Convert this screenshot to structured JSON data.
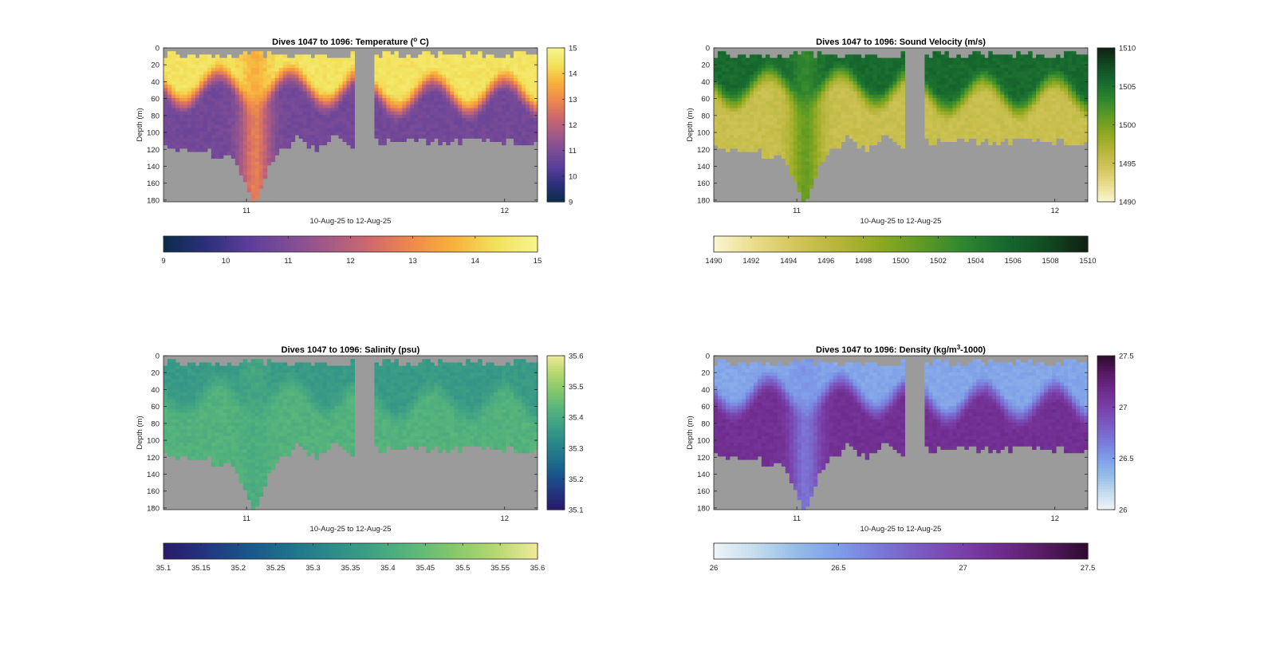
{
  "figure": {
    "background": "#ffffff",
    "nodata_color": "#9b9b9b"
  },
  "chart_data": [
    {
      "type": "heatmap",
      "title_pre": "Dives 1047 to 1096: Temperature (",
      "title_sup": "o",
      "title_post": " C)",
      "xlabel": "10-Aug-25 to 12-Aug-25",
      "ylabel": "Depth (m)",
      "x_ticks": [
        "11",
        "12"
      ],
      "y_ticks": [
        "0",
        "20",
        "40",
        "60",
        "80",
        "100",
        "120",
        "140",
        "160",
        "180"
      ],
      "ylim": [
        0,
        182
      ],
      "colorbar": {
        "ticks": [
          "9",
          "10",
          "11",
          "12",
          "13",
          "14",
          "15"
        ],
        "range": [
          9,
          15
        ]
      },
      "hcolorbar": {
        "ticks": [
          "9",
          "10",
          "11",
          "12",
          "13",
          "14",
          "15"
        ]
      },
      "colormap": [
        "#0c2c4a",
        "#2a2f7a",
        "#5a3d9a",
        "#7d4d96",
        "#a55a86",
        "#cf6a6c",
        "#f08a4b",
        "#f8b23c",
        "#f2e25c",
        "#f8f58e"
      ],
      "surface_value": 14.4,
      "bottom_value": 10.8,
      "upwelling_value": 13.4
    },
    {
      "type": "heatmap",
      "title_pre": "Dives 1047 to 1096: Sound Velocity (m/s)",
      "title_sup": "",
      "title_post": "",
      "xlabel": "10-Aug-25 to 12-Aug-25",
      "ylabel": "Depth (m)",
      "x_ticks": [
        "11",
        "12"
      ],
      "y_ticks": [
        "0",
        "20",
        "40",
        "60",
        "80",
        "100",
        "120",
        "140",
        "160",
        "180"
      ],
      "ylim": [
        0,
        182
      ],
      "colorbar": {
        "ticks": [
          "1490",
          "1495",
          "1500",
          "1505",
          "1510"
        ],
        "range": [
          1490,
          1510
        ]
      },
      "hcolorbar": {
        "ticks": [
          "1490",
          "1492",
          "1494",
          "1496",
          "1498",
          "1500",
          "1502",
          "1504",
          "1506",
          "1508",
          "1510"
        ]
      },
      "colormap": [
        "#fbf6d2",
        "#e8dc8a",
        "#d2c45a",
        "#b5b53a",
        "#8ea820",
        "#5f9a25",
        "#2f862f",
        "#17692f",
        "#114b22",
        "#101f12"
      ],
      "surface_value": 1505.5,
      "bottom_value": 1495.2,
      "upwelling_value": 1502.5
    },
    {
      "type": "heatmap",
      "title_pre": "Dives 1047 to 1096: Salinity (psu)",
      "title_sup": "",
      "title_post": "",
      "xlabel": "10-Aug-25 to 12-Aug-25",
      "ylabel": "Depth (m)",
      "x_ticks": [
        "11",
        "12"
      ],
      "y_ticks": [
        "0",
        "20",
        "40",
        "60",
        "80",
        "100",
        "120",
        "140",
        "160",
        "180"
      ],
      "ylim": [
        0,
        182
      ],
      "colorbar": {
        "ticks": [
          "35.1",
          "35.2",
          "35.3",
          "35.4",
          "35.5",
          "35.6"
        ],
        "range": [
          35.1,
          35.6
        ]
      },
      "hcolorbar": {
        "ticks": [
          "35.1",
          "35.15",
          "35.2",
          "35.25",
          "35.3",
          "35.35",
          "35.4",
          "35.45",
          "35.5",
          "35.55",
          "35.6"
        ]
      },
      "colormap": [
        "#2a1a6a",
        "#23357f",
        "#1a558a",
        "#1f718d",
        "#2c8a8a",
        "#3ea184",
        "#5bb77a",
        "#86c86c",
        "#b6d872",
        "#f0ea9a"
      ],
      "surface_value": 35.36,
      "bottom_value": 35.42,
      "upwelling_value": 35.4
    },
    {
      "type": "heatmap",
      "title_pre": "Dives 1047 to 1096: Density (kg/m",
      "title_sup": "3",
      "title_post": "-1000)",
      "xlabel": "10-Aug-25 to 12-Aug-25",
      "ylabel": "Depth (m)",
      "x_ticks": [
        "11",
        "12"
      ],
      "y_ticks": [
        "0",
        "20",
        "40",
        "60",
        "80",
        "100",
        "120",
        "140",
        "160",
        "180"
      ],
      "ylim": [
        0,
        182
      ],
      "colorbar": {
        "ticks": [
          "26",
          "26.5",
          "27",
          "27.5"
        ],
        "range": [
          26,
          27.5
        ]
      },
      "hcolorbar": {
        "ticks": [
          "26",
          "26.5",
          "27",
          "27.5"
        ]
      },
      "colormap": [
        "#eef4f6",
        "#c4dcee",
        "#94bce8",
        "#7e9de8",
        "#7b78d8",
        "#7a5ac0",
        "#7a3fa8",
        "#6e2a8a",
        "#561a62",
        "#2d0a2e"
      ],
      "surface_value": 26.45,
      "bottom_value": 27.12,
      "upwelling_value": 26.55
    }
  ]
}
